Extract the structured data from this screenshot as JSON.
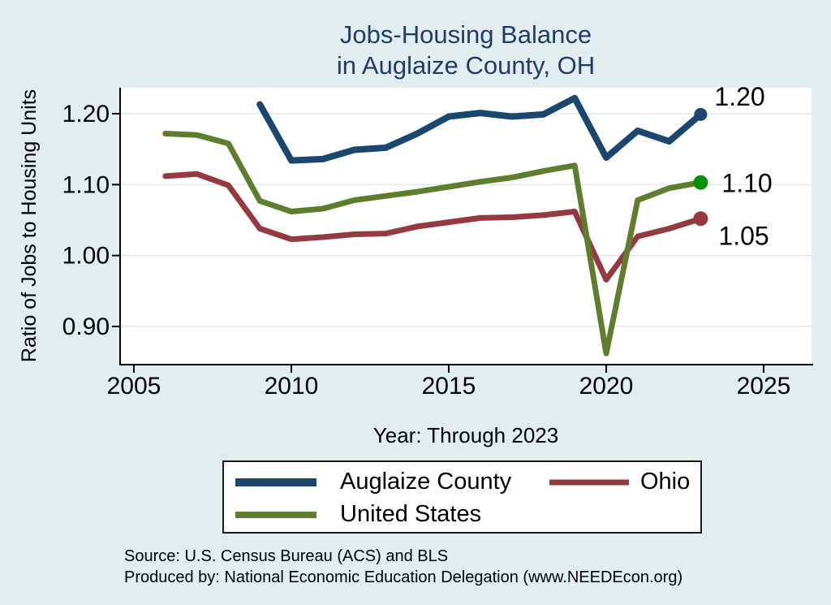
{
  "page": {
    "background": "#e2edf0",
    "plot_background": "#ffffff"
  },
  "title": {
    "line1": "Jobs-Housing Balance",
    "line2": "in Auglaize County, OH",
    "color": "#223c64"
  },
  "chart_data": {
    "type": "line",
    "title": "Jobs-Housing Balance in Auglaize County, OH",
    "xlabel": "Year: Through 2023",
    "ylabel": "Ratio of Jobs to Housing Units",
    "xlim": [
      2004.5,
      2026.5
    ],
    "ylim": [
      0.846,
      1.237
    ],
    "grid": "horizontal-only",
    "gridline_color": "#dcebee",
    "x_tick_values": [
      2005,
      2010,
      2015,
      2020,
      2025
    ],
    "x_tick_labels": [
      "2005",
      "2010",
      "2015",
      "2020",
      "2025"
    ],
    "y_tick_values": [
      1.2,
      1.1,
      1.0,
      0.9
    ],
    "y_tick_labels": [
      "1.20",
      "1.10",
      "1.00",
      "0.90"
    ],
    "legend_position": "bottom",
    "series": [
      {
        "name": "Auglaize County",
        "color": "#1a476f",
        "line_width": 8,
        "marker_color": "#1a476f",
        "marker_radius": 8,
        "end_label": "1.20",
        "end_label_offset": [
          9,
          -22
        ],
        "x": [
          2009,
          2010,
          2011,
          2012,
          2013,
          2014,
          2015,
          2016,
          2017,
          2018,
          2019,
          2020,
          2021,
          2022,
          2023
        ],
        "y": [
          1.213,
          1.134,
          1.136,
          1.149,
          1.152,
          1.172,
          1.196,
          1.201,
          1.196,
          1.199,
          1.222,
          1.138,
          1.176,
          1.161,
          1.199
        ]
      },
      {
        "name": "Ohio",
        "color": "#943a40",
        "line_width": 7,
        "marker_color": "#943a40",
        "marker_radius": 9,
        "end_label": "1.05",
        "end_label_offset": [
          13,
          21
        ],
        "x": [
          2006,
          2007,
          2008,
          2009,
          2010,
          2011,
          2012,
          2013,
          2014,
          2015,
          2016,
          2017,
          2018,
          2019,
          2020,
          2021,
          2022,
          2023
        ],
        "y": [
          1.112,
          1.115,
          1.099,
          1.038,
          1.023,
          1.026,
          1.03,
          1.031,
          1.041,
          1.047,
          1.053,
          1.054,
          1.057,
          1.062,
          0.966,
          1.027,
          1.038,
          1.052
        ]
      },
      {
        "name": "United States",
        "color": "#5e7e2d",
        "line_width": 7,
        "marker_color": "#0a8f0a",
        "marker_radius": 9,
        "end_label": "1.10",
        "end_label_offset": [
          17,
          1
        ],
        "x": [
          2006,
          2007,
          2008,
          2009,
          2010,
          2011,
          2012,
          2013,
          2014,
          2015,
          2016,
          2017,
          2018,
          2019,
          2020,
          2021,
          2022,
          2023
        ],
        "y": [
          1.172,
          1.17,
          1.158,
          1.077,
          1.062,
          1.066,
          1.078,
          1.084,
          1.09,
          1.097,
          1.104,
          1.11,
          1.119,
          1.127,
          0.862,
          1.078,
          1.095,
          1.103
        ]
      }
    ]
  },
  "legend": {
    "items": [
      {
        "label": "Auglaize County",
        "color": "#1a476f",
        "row": 0,
        "col": 0,
        "thickness": 10
      },
      {
        "label": "Ohio",
        "color": "#943a40",
        "row": 0,
        "col": 1,
        "thickness": 7
      },
      {
        "label": "United States",
        "color": "#5e7e2d",
        "row": 1,
        "col": 0,
        "thickness": 8
      }
    ]
  },
  "footer": {
    "line1": "Source: U.S. Census Bureau (ACS) and BLS",
    "line2": "Produced by: National Economic Education Delegation (www.NEEDEcon.org)"
  }
}
